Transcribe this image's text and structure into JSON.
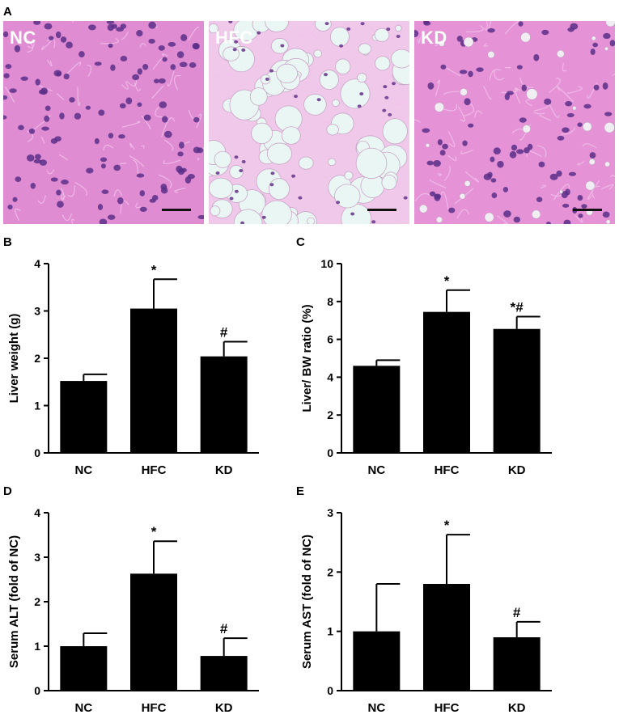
{
  "panels": {
    "A": "A",
    "B": "B",
    "C": "C",
    "D": "D",
    "E": "E"
  },
  "micrographs": [
    {
      "label": "NC",
      "tissue": "normal",
      "color_bg": "#e08cd2"
    },
    {
      "label": "HFC",
      "tissue": "steatosis",
      "color_bg": "#efc8ea"
    },
    {
      "label": "KD",
      "tissue": "mild",
      "color_bg": "#e592d6"
    }
  ],
  "chart_data": [
    {
      "type": "bar",
      "categories": [
        "NC",
        "HFC",
        "KD"
      ],
      "values": [
        1.52,
        3.05,
        2.04
      ],
      "errors": [
        0.14,
        0.62,
        0.31
      ],
      "annotations": [
        "",
        "*",
        "#"
      ],
      "ylabel": "Liver weight (g)",
      "ylim": [
        0,
        4
      ],
      "yticks": [
        0,
        1,
        2,
        3,
        4
      ],
      "bar_color": "#000000"
    },
    {
      "type": "bar",
      "categories": [
        "NC",
        "HFC",
        "KD"
      ],
      "values": [
        4.6,
        7.45,
        6.55
      ],
      "errors": [
        0.3,
        1.15,
        0.65
      ],
      "annotations": [
        "",
        "*",
        "*#"
      ],
      "ylabel": "Liver/ BW ratio (%)",
      "ylim": [
        0,
        10
      ],
      "yticks": [
        0,
        2,
        4,
        6,
        8,
        10
      ],
      "bar_color": "#000000"
    },
    {
      "type": "bar",
      "categories": [
        "NC",
        "HFC",
        "KD"
      ],
      "values": [
        1.0,
        2.63,
        0.78
      ],
      "errors": [
        0.29,
        0.73,
        0.4
      ],
      "annotations": [
        "",
        "*",
        "#"
      ],
      "ylabel": "Serum ALT (fold of NC)",
      "ylim": [
        0,
        4
      ],
      "yticks": [
        0,
        1,
        2,
        3,
        4
      ],
      "bar_color": "#000000"
    },
    {
      "type": "bar",
      "categories": [
        "NC",
        "HFC",
        "KD"
      ],
      "values": [
        1.0,
        1.8,
        0.9
      ],
      "errors": [
        0.8,
        0.83,
        0.26
      ],
      "annotations": [
        "",
        "*",
        "#"
      ],
      "ylabel": "Serum AST (fold of NC)",
      "ylim": [
        0,
        3
      ],
      "yticks": [
        0,
        1,
        2,
        3
      ],
      "bar_color": "#000000"
    }
  ]
}
